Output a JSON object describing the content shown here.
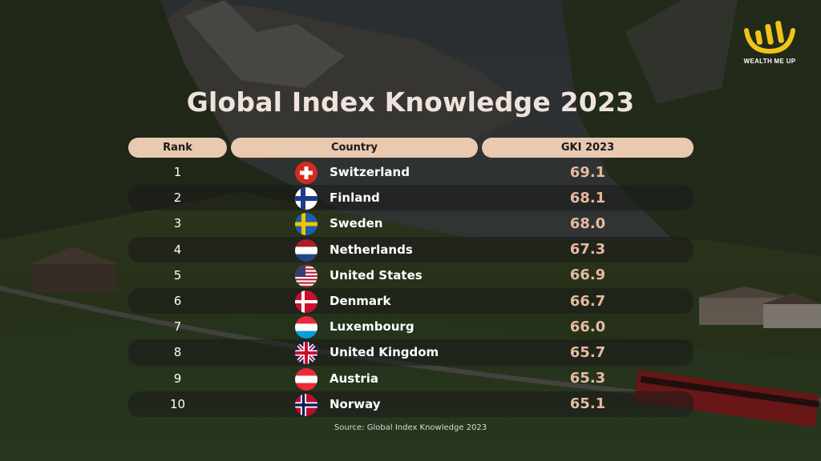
{
  "title": "Global Index Knowledge 2023",
  "logo": {
    "text": "WEALTH ME UP",
    "color": "#f2c318"
  },
  "headers": {
    "rank": "Rank",
    "country": "Country",
    "value": "GKI 2023"
  },
  "colors": {
    "pill": "#e9c9b0",
    "value": "#e6b9a0",
    "title": "#efe3de"
  },
  "rows": [
    {
      "rank": "1",
      "country": "Switzerland",
      "value": "69.1",
      "flag": "switzerland-flag-icon"
    },
    {
      "rank": "2",
      "country": "Finland",
      "value": "68.1",
      "flag": "finland-flag-icon"
    },
    {
      "rank": "3",
      "country": "Sweden",
      "value": "68.0",
      "flag": "sweden-flag-icon"
    },
    {
      "rank": "4",
      "country": "Netherlands",
      "value": "67.3",
      "flag": "netherlands-flag-icon"
    },
    {
      "rank": "5",
      "country": "United States",
      "value": "66.9",
      "flag": "usa-flag-icon"
    },
    {
      "rank": "6",
      "country": "Denmark",
      "value": "66.7",
      "flag": "denmark-flag-icon"
    },
    {
      "rank": "7",
      "country": "Luxembourg",
      "value": "66.0",
      "flag": "luxembourg-flag-icon"
    },
    {
      "rank": "8",
      "country": "United Kingdom",
      "value": "65.7",
      "flag": "uk-flag-icon"
    },
    {
      "rank": "9",
      "country": "Austria",
      "value": "65.3",
      "flag": "austria-flag-icon"
    },
    {
      "rank": "10",
      "country": "Norway",
      "value": "65.1",
      "flag": "norway-flag-icon"
    }
  ],
  "source": "Source: Global Index Knowledge 2023"
}
